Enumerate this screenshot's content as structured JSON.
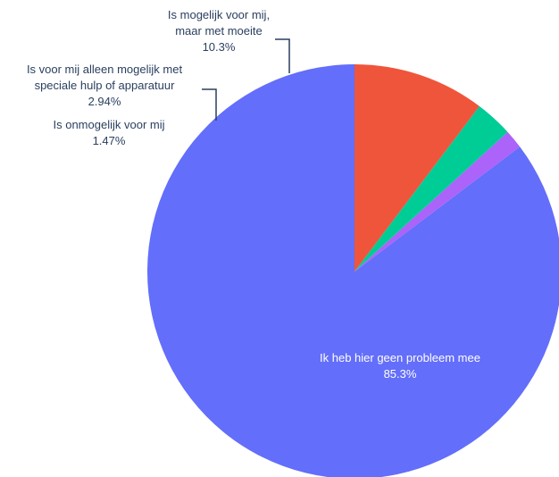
{
  "chart_data": {
    "type": "pie",
    "slices": [
      {
        "label": "Ik heb hier geen probleem mee",
        "label_lines": [
          "Ik heb hier geen probleem mee"
        ],
        "value": 85.3,
        "value_text": "85.3%",
        "color": "#636efa",
        "label_inside": true
      },
      {
        "label": "Is onmogelijk voor mij",
        "label_lines": [
          "Is onmogelijk voor mij"
        ],
        "value": 1.47,
        "value_text": "1.47%",
        "color": "#ab63fa",
        "label_inside": false
      },
      {
        "label": "Is voor mij alleen mogelijk met speciale hulp of apparatuur",
        "label_lines": [
          "Is voor mij alleen mogelijk met",
          "speciale hulp of apparatuur"
        ],
        "value": 2.94,
        "value_text": "2.94%",
        "color": "#00cc96",
        "label_inside": false
      },
      {
        "label": "Is mogelijk voor mij, maar met moeite",
        "label_lines": [
          "Is mogelijk voor mij,",
          "maar met moeite"
        ],
        "value": 10.3,
        "value_text": "10.3%",
        "color": "#ef553b",
        "label_inside": false
      }
    ],
    "start": "12 o'clock",
    "direction": "counterclockwise",
    "legend": "none"
  }
}
